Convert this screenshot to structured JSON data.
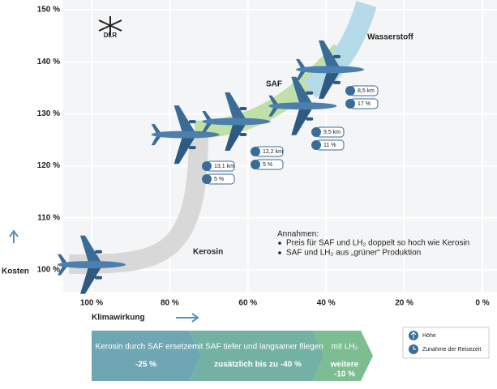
{
  "chart_data": {
    "type": "scatter",
    "logo": "DLR",
    "y_label": "Kosten",
    "x_label": "Klimawirkung",
    "x": [
      100,
      76,
      63,
      46,
      39
    ],
    "values": [
      101,
      126,
      128.5,
      131.5,
      138.5
    ],
    "color": "#3b6c98",
    "xlim": [
      100,
      0
    ],
    "ylim": [
      100,
      150
    ],
    "xticks": [
      {
        "value": 100,
        "label": "100 %"
      },
      {
        "value": 80,
        "label": "80 %"
      },
      {
        "value": 60,
        "label": "60 %"
      },
      {
        "value": 40,
        "label": "40 %"
      },
      {
        "value": 20,
        "label": "20 %"
      },
      {
        "value": 0,
        "label": "0 %"
      }
    ],
    "yticks": [
      {
        "value": 100,
        "label": "100 %"
      },
      {
        "value": 110,
        "label": "110 %"
      },
      {
        "value": 120,
        "label": "120 %"
      },
      {
        "value": 130,
        "label": "130 %"
      },
      {
        "value": 140,
        "label": "140 %"
      },
      {
        "value": 150,
        "label": "150 %"
      }
    ],
    "grid": true,
    "band_labels": [
      "Kerosin",
      "SAF",
      "Wasserstoff"
    ],
    "point_labels": [
      {
        "altitude": "13,1 km",
        "time": "5 %"
      },
      {
        "altitude": "12,2 km",
        "time": "5 %"
      },
      {
        "altitude": "9,5 km",
        "time": "11 %"
      },
      {
        "altitude": "8,5 km",
        "time": "17 %"
      }
    ],
    "assumptions": {
      "title": "Annahmen:",
      "items": [
        "Preis für SAF und LH₂ doppelt so hoch wie Kerosin",
        "SAF und LH₂ aus „grüner“ Produktion"
      ]
    },
    "steps": [
      {
        "text": "Kerosin durch SAF ersetzen",
        "effect": [
          "-25 %"
        ]
      },
      {
        "text": "mit SAF tiefer und langsamer fliegen",
        "effect": [
          "zusätzlich bis zu -40 %"
        ]
      },
      {
        "text": "mit LH₂",
        "effect": [
          "weitere",
          "-10 %"
        ]
      }
    ],
    "legend": [
      "Höhe",
      "Zunahme der Reisezeit"
    ]
  }
}
